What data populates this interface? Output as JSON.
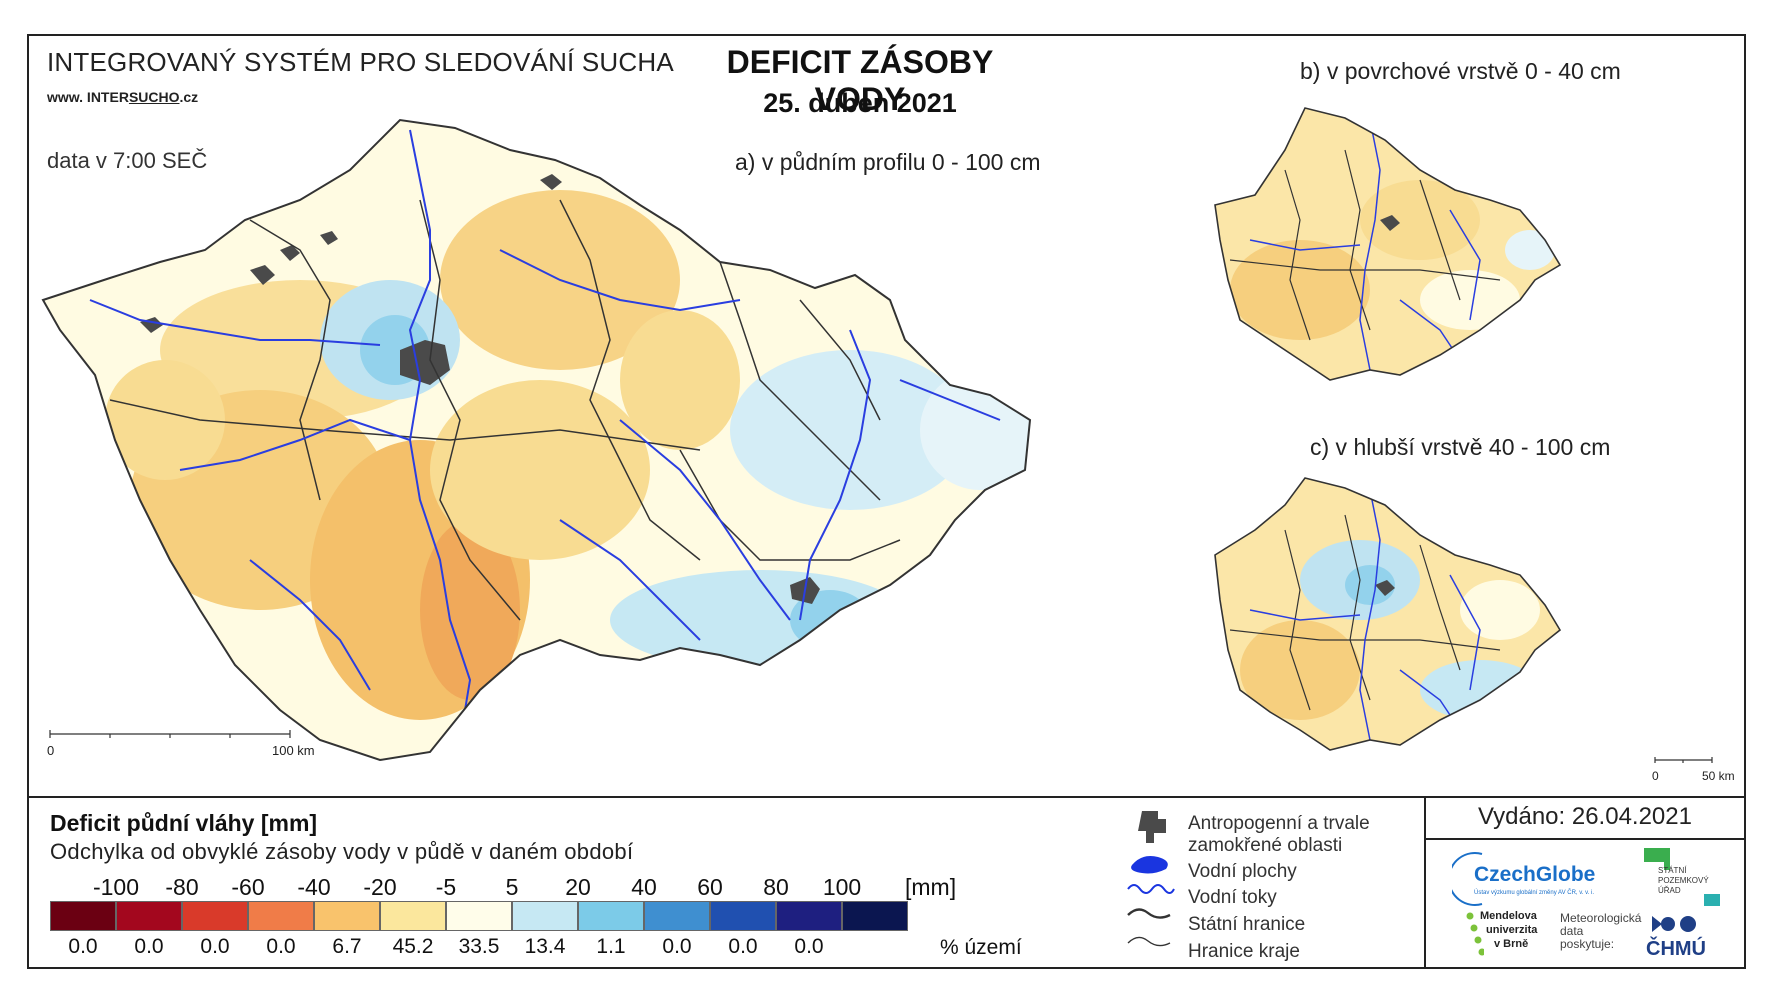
{
  "header": {
    "system_title": "INTEGROVANÝ SYSTÉM PRO SLEDOVÁNÍ SUCHA",
    "website_prefix": "www. INTER",
    "website_underlined": "SUCHO",
    "website_suffix": ".cz",
    "data_time": "data v 7:00 SEČ",
    "main_title": "DEFICIT ZÁSOBY VODY",
    "main_date": "25. duben 2021"
  },
  "maps": {
    "a_label": "a) v půdním profilu 0 - 100 cm",
    "b_label": "b) v povrchové vrstvě 0 - 40 cm",
    "c_label": "c) v hlubší vrstvě 40 - 100 cm",
    "scale_a_start": "0",
    "scale_a_end": "100 km",
    "scale_small_start": "0",
    "scale_small_end": "50 km"
  },
  "legend": {
    "title": "Deficit půdní vláhy  [mm]",
    "subtitle": "Odchylka od obvyklé zásoby vody v půdě v daném období",
    "ticks": [
      "-100",
      "-80",
      "-60",
      "-40",
      "-20",
      "-5",
      "5",
      "20",
      "40",
      "60",
      "80",
      "100"
    ],
    "unit": "[mm]",
    "classes": [
      {
        "color": "#6b0012",
        "percent": "0.0"
      },
      {
        "color": "#a3071e",
        "percent": "0.0"
      },
      {
        "color": "#d93a2a",
        "percent": "0.0"
      },
      {
        "color": "#f07c48",
        "percent": "0.0"
      },
      {
        "color": "#f9c36c",
        "percent": "6.7"
      },
      {
        "color": "#fbe79d",
        "percent": "45.2"
      },
      {
        "color": "#fffdea",
        "percent": "33.5"
      },
      {
        "color": "#c6e8f3",
        "percent": "13.4"
      },
      {
        "color": "#7ccbe8",
        "percent": "1.1"
      },
      {
        "color": "#3f8fd0",
        "percent": "0.0"
      },
      {
        "color": "#2050b0",
        "percent": "0.0"
      },
      {
        "color": "#1e1f80",
        "percent": "0.0"
      },
      {
        "color": "#0b1650",
        "percent": ""
      }
    ],
    "area_label": "% území"
  },
  "symbols": {
    "anthro_line1": "Antropogenní a trvale",
    "anthro_line2": "zamokřené oblasti",
    "water_bodies": "Vodní plochy",
    "water_courses": "Vodní toky",
    "state_border": "Státní hranice",
    "region_border": "Hranice kraje"
  },
  "footer": {
    "issued": "Vydáno: 26.04.2021",
    "czechglobe": "CzechGlobe",
    "czechglobe_sub": "Ústav výzkumu globální změny AV ČR, v. v. i.",
    "spu_line1": "STÁTNÍ",
    "spu_line2": "POZEMKOVÝ",
    "spu_line3": "ÚŘAD",
    "mendel_line1": "Mendelova",
    "mendel_line2": "univerzita",
    "mendel_line3": "v Brně",
    "met_line1": "Meteorologická",
    "met_line2": "data",
    "met_line3": "poskytuje:",
    "chmu": "ČHMÚ"
  },
  "colors": {
    "river": "#2a3ee0",
    "border_state": "#333333",
    "urban": "#4a4a4a",
    "dry": "#f6cf7e",
    "neutral": "#fffbe2",
    "wet": "#bfe3f1"
  }
}
